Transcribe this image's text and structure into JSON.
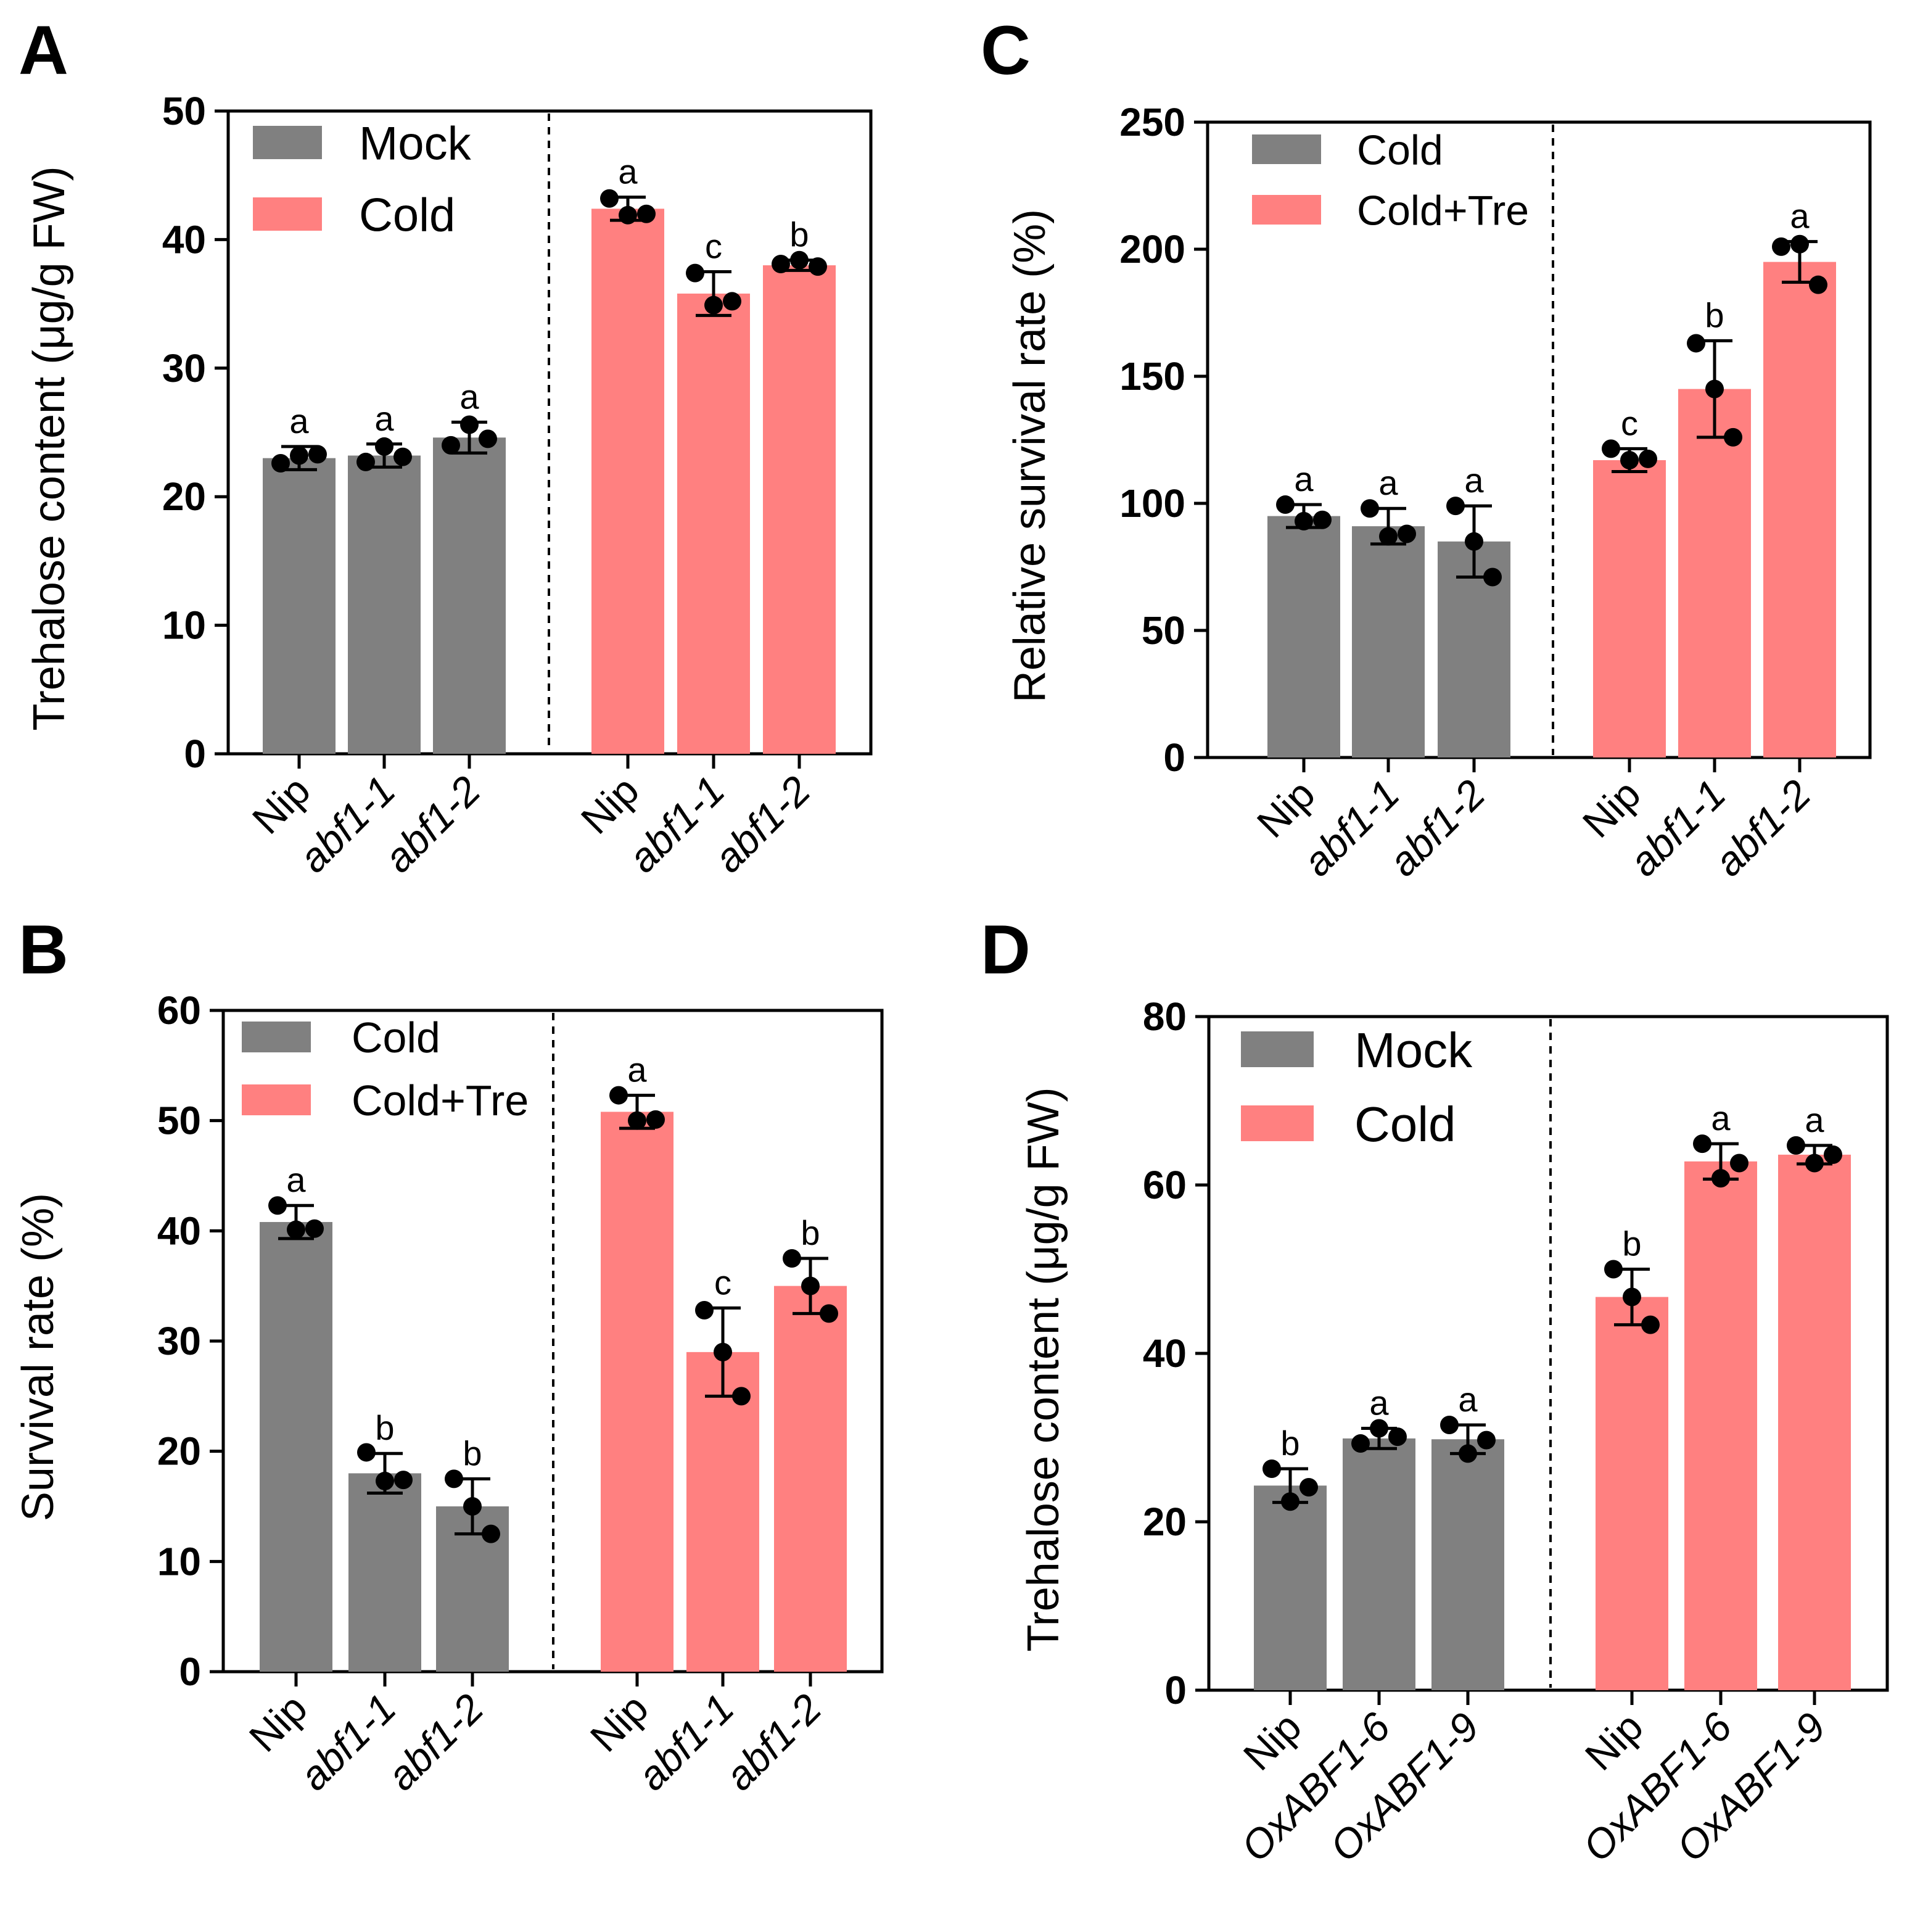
{
  "chart_data": [
    {
      "type": "bar",
      "panel": "A",
      "title": "",
      "ylabel": "Trehalose content (μg/g FW)",
      "ylim": [
        0,
        50
      ],
      "yticks": [
        0,
        10,
        20,
        30,
        40,
        50
      ],
      "legend": {
        "position": "top-left",
        "entries": [
          "Mock",
          "Cold"
        ]
      },
      "groups": [
        {
          "name": "Mock",
          "color": "#808080",
          "categories": [
            "Nip",
            "abf1-1",
            "abf1-2"
          ],
          "values": [
            23.0,
            23.2,
            24.6
          ],
          "errors": [
            0.9,
            0.9,
            1.2
          ],
          "points": [
            [
              22.6,
              23.2,
              23.3
            ],
            [
              22.7,
              23.9,
              23.1
            ],
            [
              24.0,
              25.6,
              24.5
            ]
          ],
          "letters": [
            "a",
            "a",
            "a"
          ]
        },
        {
          "name": "Cold",
          "color": "#FF8080",
          "categories": [
            "Nip",
            "abf1-1",
            "abf1-2"
          ],
          "values": [
            42.4,
            35.8,
            38.0
          ],
          "errors": [
            0.9,
            1.7,
            0.4
          ],
          "points": [
            [
              43.2,
              41.9,
              42.0
            ],
            [
              37.4,
              34.9,
              35.2
            ],
            [
              38.1,
              38.4,
              37.9
            ]
          ],
          "letters": [
            "a",
            "c",
            "b"
          ]
        }
      ]
    },
    {
      "type": "bar",
      "panel": "B",
      "title": "",
      "ylabel": "Survival rate (%)",
      "ylim": [
        0,
        60
      ],
      "yticks": [
        0,
        10,
        20,
        30,
        40,
        50,
        60
      ],
      "legend": {
        "position": "top-left",
        "entries": [
          "Cold",
          "Cold+Tre"
        ]
      },
      "groups": [
        {
          "name": "Cold",
          "color": "#808080",
          "categories": [
            "Nip",
            "abf1-1",
            "abf1-2"
          ],
          "values": [
            40.8,
            18.0,
            15.0
          ],
          "errors": [
            1.5,
            1.8,
            2.5
          ],
          "points": [
            [
              42.3,
              40.1,
              40.2
            ],
            [
              19.9,
              17.3,
              17.4
            ],
            [
              17.5,
              15.0,
              12.5
            ]
          ],
          "letters": [
            "a",
            "b",
            "b"
          ]
        },
        {
          "name": "Cold+Tre",
          "color": "#FF8080",
          "categories": [
            "Nip",
            "abf1-1",
            "abf1-2"
          ],
          "values": [
            50.8,
            29.0,
            35.0
          ],
          "errors": [
            1.5,
            4.0,
            2.5
          ],
          "points": [
            [
              52.3,
              50.0,
              50.1
            ],
            [
              32.8,
              29.0,
              25.0
            ],
            [
              37.5,
              35.0,
              32.5
            ]
          ],
          "letters": [
            "a",
            "c",
            "b"
          ]
        }
      ]
    },
    {
      "type": "bar",
      "panel": "C",
      "title": "",
      "ylabel": "Relative survival rate (%)",
      "ylim": [
        0,
        250
      ],
      "yticks": [
        0,
        50,
        100,
        150,
        200,
        250
      ],
      "legend": {
        "position": "top-left",
        "entries": [
          "Cold",
          "Cold+Tre"
        ]
      },
      "groups": [
        {
          "name": "Cold",
          "color": "#808080",
          "categories": [
            "Nip",
            "abf1-1",
            "abf1-2"
          ],
          "values": [
            95.0,
            91.0,
            85.0
          ],
          "errors": [
            4.5,
            7.0,
            14.0
          ],
          "points": [
            [
              99.5,
              93.0,
              93.5
            ],
            [
              98.0,
              87.0,
              88.0
            ],
            [
              99.0,
              85.0,
              71.0
            ]
          ],
          "letters": [
            "a",
            "a",
            "a"
          ]
        },
        {
          "name": "Cold+Tre",
          "color": "#FF8080",
          "categories": [
            "Nip",
            "abf1-1",
            "abf1-2"
          ],
          "values": [
            117.0,
            145.0,
            195.0
          ],
          "errors": [
            4.5,
            19.0,
            8.0
          ],
          "points": [
            [
              121.5,
              117.0,
              117.5
            ],
            [
              163.0,
              145.0,
              126.0
            ],
            [
              201.0,
              202.0,
              186.0
            ]
          ],
          "letters": [
            "c",
            "b",
            "a"
          ]
        }
      ]
    },
    {
      "type": "bar",
      "panel": "D",
      "title": "",
      "ylabel": "Trehalose content (μg/g FW)",
      "ylim": [
        0,
        80
      ],
      "yticks": [
        0,
        20,
        40,
        60,
        80
      ],
      "legend": {
        "position": "top-left",
        "entries": [
          "Mock",
          "Cold"
        ]
      },
      "groups": [
        {
          "name": "Mock",
          "color": "#808080",
          "categories": [
            "Nip",
            "OxABF1-6",
            "OxABF1-9"
          ],
          "values": [
            24.3,
            29.9,
            29.8
          ],
          "errors": [
            2.0,
            1.2,
            1.7
          ],
          "points": [
            [
              26.3,
              22.4,
              24.1
            ],
            [
              29.3,
              31.1,
              30.1
            ],
            [
              31.5,
              28.1,
              29.7
            ]
          ],
          "letters": [
            "b",
            "a",
            "a"
          ]
        },
        {
          "name": "Cold",
          "color": "#FF8080",
          "categories": [
            "Nip",
            "OxABF1-6",
            "OxABF1-9"
          ],
          "values": [
            46.7,
            62.8,
            63.6
          ],
          "errors": [
            3.3,
            2.1,
            1.1
          ],
          "points": [
            [
              50.0,
              46.7,
              43.4
            ],
            [
              64.9,
              60.8,
              62.6
            ],
            [
              64.7,
              62.6,
              63.6
            ]
          ],
          "letters": [
            "b",
            "a",
            "a"
          ]
        }
      ]
    }
  ]
}
